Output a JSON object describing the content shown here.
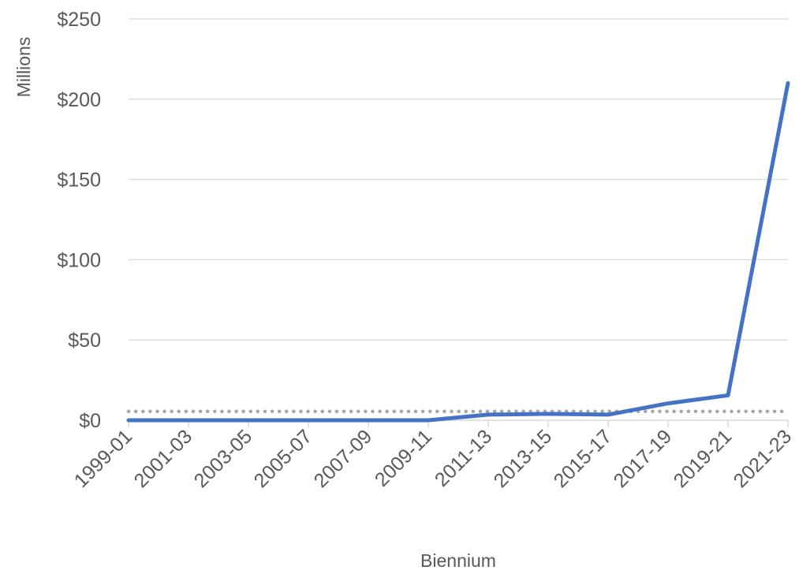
{
  "chart_data": {
    "type": "line",
    "xlabel": "Biennium",
    "ylabel": "Millions",
    "categories": [
      "1999-01",
      "2001-03",
      "2003-05",
      "2005-07",
      "2007-09",
      "2009-11",
      "2011-13",
      "2013-15",
      "2015-17",
      "2017-19",
      "2019-21",
      "2021-23"
    ],
    "series": [
      {
        "values": [
          0,
          0,
          0,
          0,
          0,
          0,
          3.5,
          4,
          3.5,
          10.5,
          15.5,
          210
        ]
      }
    ],
    "reference_line": {
      "value": 5.5,
      "style": "dotted"
    },
    "ylim": [
      0,
      250
    ],
    "yticks": [
      0,
      50,
      100,
      150,
      200,
      250
    ],
    "ytick_labels": [
      "$0",
      "$50",
      "$100",
      "$150",
      "$200",
      "$250"
    ],
    "grid": true,
    "legend": "none",
    "colors": {
      "series": "#4472C4",
      "reference": "#A6A6A6",
      "grid": "#D9D9D9",
      "text": "#595959"
    }
  }
}
